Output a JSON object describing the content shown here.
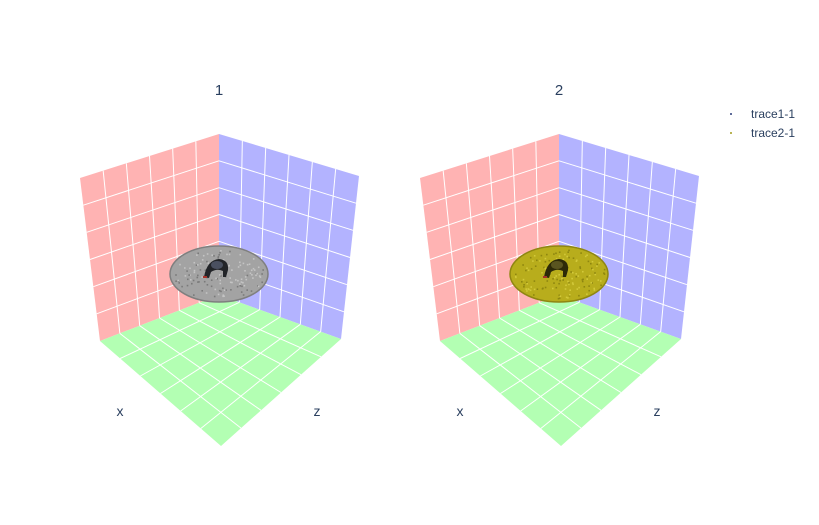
{
  "chart_data": {
    "type": "scatter3d",
    "subplots": [
      {
        "title": "1",
        "axes": {
          "x": "x",
          "y": "",
          "z": "z"
        },
        "walls": {
          "xz": "#ffb3b3",
          "yz": "#b3b3ff",
          "floor": "#b3ffb3"
        },
        "trace": "trace1-1",
        "image_tint": "grayscale"
      },
      {
        "title": "2",
        "axes": {
          "x": "x",
          "y": "",
          "z": "z"
        },
        "walls": {
          "xz": "#ffb3b3",
          "yz": "#b3b3ff",
          "floor": "#b3ffb3"
        },
        "trace": "trace2-1",
        "image_tint": "yellow"
      }
    ],
    "legend": [
      {
        "name": "trace1-1",
        "color": "#2c3e7a"
      },
      {
        "name": "trace2-1",
        "color": "#a39c1e"
      }
    ],
    "grid": true,
    "legend_position": "top-right"
  }
}
